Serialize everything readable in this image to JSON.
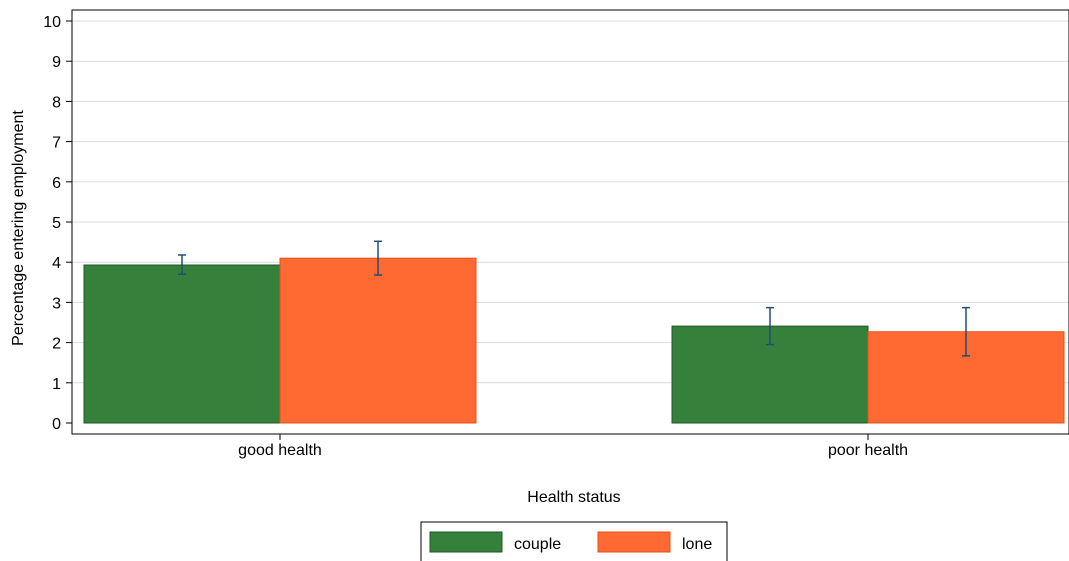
{
  "chart_data": {
    "type": "bar",
    "title": "",
    "xlabel": "Health status",
    "ylabel": "Percentage entering employment",
    "categories": [
      "good health",
      "poor health"
    ],
    "ylim": [
      0,
      10
    ],
    "yticks": [
      0,
      1,
      2,
      3,
      4,
      5,
      6,
      7,
      8,
      9,
      10
    ],
    "grid": true,
    "legend_position": "bottom",
    "series": [
      {
        "name": "couple",
        "color": "#35803a",
        "values": [
          3.93,
          2.41
        ],
        "ci_low": [
          3.7,
          1.95
        ],
        "ci_high": [
          4.18,
          2.87
        ]
      },
      {
        "name": "lone",
        "color": "#ff6a33",
        "values": [
          4.1,
          2.27
        ],
        "ci_low": [
          3.68,
          1.67
        ],
        "ci_high": [
          4.52,
          2.87
        ]
      }
    ],
    "error_bar_color": "#1f4e79"
  }
}
